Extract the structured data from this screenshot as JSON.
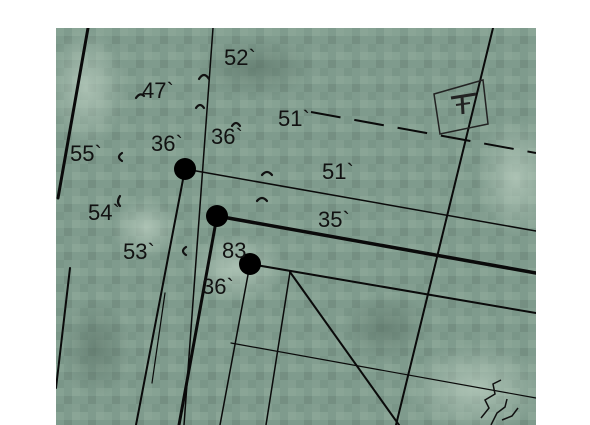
{
  "map": {
    "colors": {
      "imagery": "#7e9a8c",
      "ink": "#0a0a0a"
    },
    "labels": [
      {
        "id": "label-52",
        "text": "52`"
      },
      {
        "id": "label-47",
        "text": "47`"
      },
      {
        "id": "label-51-upper",
        "text": "51`"
      },
      {
        "id": "label-55",
        "text": "55`"
      },
      {
        "id": "label-36-left",
        "text": "36`"
      },
      {
        "id": "label-36-mid",
        "text": "36`"
      },
      {
        "id": "label-51-lower",
        "text": "51`"
      },
      {
        "id": "label-54",
        "text": "54`"
      },
      {
        "id": "label-35",
        "text": "35`"
      },
      {
        "id": "label-53",
        "text": "53`"
      },
      {
        "id": "label-83",
        "text": "83"
      },
      {
        "id": "label-36-bottom",
        "text": "36`"
      }
    ],
    "symbols": [
      "monument-t-icon"
    ]
  }
}
